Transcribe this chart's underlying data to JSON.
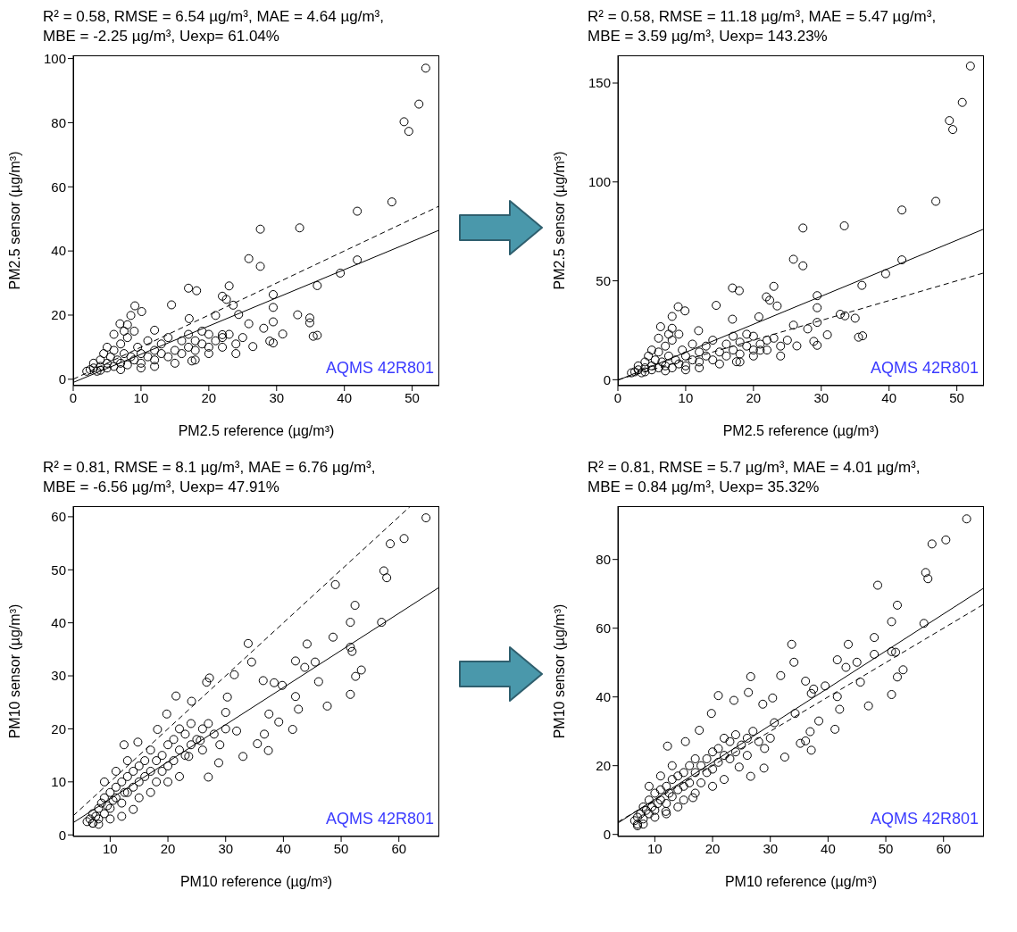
{
  "chart_data": [
    {
      "type": "scatter",
      "title": "R² = 0.58, RMSE = 6.54 µg/m³, MAE = 4.64 µg/m³,",
      "subtitle": "MBE = -2.25 µg/m³, Uexp= 61.04%",
      "xlabel": "PM2.5 reference (µg/m³)",
      "ylabel": "PM2.5 sensor (µg/m³)",
      "annotations": [
        "AQMS 42R801"
      ],
      "xlim": [
        0,
        54
      ],
      "ylim": [
        -2,
        101
      ],
      "xticks": [
        0,
        10,
        20,
        30,
        40,
        50
      ],
      "yticks": [
        0,
        20,
        40,
        60,
        80,
        100
      ],
      "series": [
        {
          "type": "scatter",
          "color": "#000000",
          "marker": "circle",
          "x": [
            52,
            51,
            48.8,
            49.5,
            47,
            41.9,
            33.4,
            27.6,
            25.9,
            27.6,
            41.9,
            39.4,
            36,
            29.5,
            29.5,
            23,
            17,
            18.2,
            22,
            22.6,
            23.6,
            24.4,
            14.5,
            9.1,
            10.1,
            33.1,
            34.9,
            34.9,
            29.5,
            28.1,
            30.9,
            35.4,
            36,
            29,
            29.5,
            26.5,
            25.9,
            21,
            17.1,
            12,
            6.9,
            8.5,
            22,
            17.5,
            2.5,
            3,
            3,
            4,
            4,
            4.5,
            5,
            5,
            5.5,
            6,
            6,
            6.5,
            7,
            7,
            7.5,
            8,
            8,
            8.5,
            9,
            9,
            9.5,
            10,
            10,
            11,
            11,
            12,
            12,
            13,
            13,
            14,
            14,
            15,
            16,
            16,
            17,
            17,
            18,
            18,
            19,
            19,
            20,
            20,
            21,
            22,
            22,
            23,
            24,
            25,
            6,
            5,
            3.5,
            2,
            4,
            7,
            10,
            12,
            8,
            7.5,
            15,
            18,
            20,
            24
          ],
          "values": [
            97,
            85.8,
            80.3,
            77.3,
            55.3,
            52.4,
            47.2,
            46.8,
            37.6,
            35.2,
            37.2,
            33.1,
            29.2,
            26.4,
            22.4,
            29.1,
            28.4,
            27.6,
            25.9,
            24.9,
            23.1,
            20.2,
            23.2,
            22.9,
            21.1,
            20.1,
            19.1,
            17.6,
            17.9,
            15.9,
            14.1,
            13.4,
            13.7,
            11.9,
            11.3,
            10.2,
            17.3,
            19.9,
            18.9,
            15.3,
            17.3,
            19.9,
            13.9,
            5.7,
            3,
            3.5,
            5,
            4,
            6,
            8,
            5,
            3.5,
            7,
            4,
            9,
            6,
            5,
            11,
            8,
            4.5,
            13,
            7,
            6,
            15,
            10,
            5,
            8,
            7,
            12,
            6,
            9,
            8,
            11,
            7,
            13,
            9,
            8,
            12,
            10,
            14,
            9,
            12,
            11,
            15,
            10,
            14,
            12,
            13,
            10,
            14,
            11,
            13,
            14,
            10,
            2.5,
            2.5,
            2.8,
            3,
            3.5,
            4,
            17,
            15,
            5,
            6,
            8,
            8
          ]
        },
        {
          "type": "line",
          "color": "#000000",
          "line_style": "solid",
          "marker": "none",
          "x": [
            0,
            54
          ],
          "values": [
            -1,
            46.5
          ]
        },
        {
          "type": "line",
          "color": "#000000",
          "line_style": "dashed",
          "marker": "none",
          "x": [
            0,
            54
          ],
          "values": [
            0,
            54
          ]
        }
      ]
    },
    {
      "type": "scatter",
      "title": "R² = 0.58, RMSE = 11.18 µg/m³, MAE = 5.47 µg/m³,",
      "subtitle": "MBE = 3.59 µg/m³, Uexp= 143.23%",
      "xlabel": "PM2.5 reference (µg/m³)",
      "ylabel": "PM2.5 sensor (µg/m³)",
      "annotations": [
        "AQMS 42R801"
      ],
      "xlim": [
        0,
        54
      ],
      "ylim": [
        -3,
        164
      ],
      "xticks": [
        0,
        10,
        20,
        30,
        40,
        50
      ],
      "yticks": [
        0,
        50,
        100,
        150
      ],
      "series": [
        {
          "type": "scatter",
          "color": "#000000",
          "marker": "circle",
          "x": [
            52,
            50.8,
            48.9,
            49.4,
            46.9,
            41.9,
            33.4,
            27.3,
            25.9,
            27.3,
            41.9,
            39.5,
            36,
            29.4,
            29.4,
            23,
            16.9,
            17.9,
            21.9,
            22.4,
            23.5,
            14.5,
            8.9,
            9.9,
            32.8,
            33.5,
            35,
            29.4,
            28,
            30.9,
            35.5,
            36.1,
            28.9,
            29.4,
            26.4,
            25.9,
            20.8,
            16.9,
            11.9,
            6.3,
            8,
            21,
            17.5,
            2.5,
            3,
            3,
            4,
            4,
            4.5,
            5,
            5,
            5.5,
            6,
            6,
            6.5,
            7,
            7,
            7.5,
            8,
            8,
            8.5,
            9,
            9,
            9.5,
            10,
            10,
            11,
            11,
            12,
            12,
            13,
            13,
            14,
            14,
            15,
            16,
            16,
            17,
            17,
            18,
            18,
            19,
            19,
            20,
            20,
            21,
            22,
            22,
            23,
            24,
            25,
            6,
            5,
            3.5,
            2,
            4,
            7,
            10,
            12,
            8,
            7.5,
            15,
            18,
            20,
            24
          ],
          "values": [
            158.6,
            140.2,
            131,
            126.5,
            90.2,
            85.8,
            77.8,
            76.7,
            60.9,
            57.6,
            60.6,
            53.6,
            47.7,
            42.5,
            36.4,
            47.2,
            46.4,
            45,
            41.9,
            40.2,
            37.3,
            37.6,
            36.9,
            34.8,
            33.1,
            32.3,
            31.1,
            29,
            25.7,
            22.7,
            21.5,
            22.2,
            19.4,
            17.4,
            17.1,
            27.6,
            31.8,
            30.6,
            24.8,
            26.8,
            32,
            14.9,
            9.1,
            4,
            5,
            7,
            6,
            9,
            12,
            7,
            5,
            10,
            6,
            14,
            9,
            7,
            17,
            12,
            6,
            20,
            10,
            8,
            23,
            15,
            7,
            12,
            10,
            18,
            9,
            14,
            12,
            17,
            10,
            20,
            14,
            12,
            18,
            15,
            22,
            13,
            19,
            17,
            23,
            15,
            22,
            18,
            20,
            15,
            21,
            17,
            20,
            21,
            15,
            3.5,
            3.5,
            4,
            4.5,
            5,
            6,
            26,
            23,
            8,
            9,
            12,
            12
          ]
        },
        {
          "type": "line",
          "color": "#000000",
          "line_style": "solid",
          "marker": "none",
          "x": [
            0,
            54
          ],
          "values": [
            -0.3,
            76.2
          ]
        },
        {
          "type": "line",
          "color": "#000000",
          "line_style": "dashed",
          "marker": "none",
          "x": [
            0,
            54
          ],
          "values": [
            0,
            54
          ]
        }
      ]
    },
    {
      "type": "scatter",
      "title": "R² = 0.81, RMSE = 8.1 µg/m³, MAE = 6.76 µg/m³,",
      "subtitle": "MBE = -6.56 µg/m³, Uexp= 47.91%",
      "xlabel": "PM10 reference (µg/m³)",
      "ylabel": "PM10 sensor (µg/m³)",
      "annotations": [
        "AQMS 42R801"
      ],
      "xlim": [
        3.6,
        67
      ],
      "ylim": [
        -0.3,
        62
      ],
      "xticks": [
        10,
        20,
        30,
        40,
        50,
        60
      ],
      "yticks": [
        0,
        10,
        20,
        30,
        40,
        50,
        60
      ],
      "series": [
        {
          "type": "scatter",
          "color": "#000000",
          "marker": "circle",
          "x": [
            64.7,
            60.9,
            58.5,
            57.4,
            57.9,
            49,
            52.4,
            51.6,
            57,
            48.6,
            51.6,
            51.9,
            44.1,
            33.9,
            34.5,
            42.1,
            43.7,
            45.5,
            31.5,
            27.2,
            26.7,
            21.4,
            24.1,
            30.3,
            36.5,
            38.4,
            39.8,
            46.1,
            53.5,
            52.5,
            51.6,
            47.6,
            42.1,
            42.6,
            41.6,
            37.5,
            39.2,
            35.5,
            37.4,
            36.7,
            33,
            31.9,
            27,
            28.8,
            19.8,
            18.2,
            12.4,
            14.8,
            23.6,
            25.6,
            30,
            6,
            6.5,
            7,
            7,
            7.5,
            8,
            8,
            8.5,
            9,
            9,
            9.5,
            10,
            10,
            10.5,
            11,
            11,
            12,
            12,
            12.5,
            13,
            13,
            14,
            14,
            15,
            15,
            16,
            16,
            17,
            17,
            18,
            18,
            19,
            19,
            20,
            20,
            21,
            21,
            22,
            22,
            23,
            23,
            24,
            24,
            25,
            26,
            26,
            27,
            28,
            29,
            30,
            13,
            11,
            9,
            15,
            17,
            20,
            22,
            12,
            10,
            14,
            8,
            7
          ],
          "values": [
            59.8,
            55.9,
            54.9,
            49.8,
            48.5,
            47.2,
            43.3,
            40.1,
            40.1,
            37.3,
            35.4,
            34.6,
            36,
            36.1,
            32.6,
            32.8,
            31.6,
            32.6,
            30.2,
            29.6,
            28.8,
            26.2,
            25.2,
            26,
            29.1,
            28.7,
            28.2,
            28.9,
            31.1,
            29.9,
            26.5,
            24.3,
            26.1,
            23.7,
            19.9,
            22.8,
            21.3,
            17.2,
            15.9,
            19,
            14.8,
            19.6,
            10.9,
            13.6,
            22.8,
            19.9,
            17,
            17.5,
            14.8,
            17.8,
            23.1,
            2.5,
            3,
            2.2,
            4,
            3.5,
            5,
            3,
            6,
            4,
            7,
            5.5,
            8,
            5,
            6.5,
            9,
            7,
            10,
            6,
            8,
            11,
            8,
            12,
            9,
            13,
            10,
            14,
            11,
            12,
            16,
            14,
            10,
            15,
            12,
            17,
            13,
            18,
            14,
            20,
            16,
            19,
            15,
            21,
            17,
            18,
            20,
            16,
            21,
            19,
            17,
            20,
            14,
            12,
            10,
            7,
            8,
            10,
            11,
            3.5,
            3,
            4.8,
            2,
            2.2
          ]
        },
        {
          "type": "line",
          "color": "#000000",
          "line_style": "solid",
          "marker": "none",
          "x": [
            3.6,
            67
          ],
          "values": [
            2.3,
            46.7
          ]
        },
        {
          "type": "line",
          "color": "#000000",
          "line_style": "dashed",
          "marker": "none",
          "x": [
            3.6,
            62
          ],
          "values": [
            3.6,
            62
          ]
        }
      ]
    },
    {
      "type": "scatter",
      "title": "R² = 0.81, RMSE = 5.7 µg/m³, MAE = 4.01 µg/m³,",
      "subtitle": "MBE = 0.84 µg/m³, Uexp= 35.32%",
      "xlabel": "PM10 reference (µg/m³)",
      "ylabel": "PM10 sensor (µg/m³)",
      "annotations": [
        "AQMS 42R801"
      ],
      "xlim": [
        3.6,
        67
      ],
      "ylim": [
        -0.6,
        95.5
      ],
      "xticks": [
        10,
        20,
        30,
        40,
        50,
        60
      ],
      "yticks": [
        0,
        20,
        40,
        60,
        80
      ],
      "series": [
        {
          "type": "scatter",
          "color": "#000000",
          "marker": "circle",
          "x": [
            64,
            60.4,
            58,
            56.9,
            57.3,
            48.6,
            52,
            51,
            56.6,
            48,
            43.5,
            33.7,
            34.1,
            51,
            51.7,
            48,
            45,
            41.6,
            43.1,
            53,
            52,
            51,
            47,
            45.6,
            31.8,
            26.6,
            26.2,
            21,
            23.7,
            28.7,
            30.4,
            19.8,
            36.1,
            37.5,
            37.1,
            39.5,
            41.6,
            42,
            41.2,
            38.4,
            36.9,
            36.1,
            37.1,
            35.2,
            34.3,
            30.7,
            32.5,
            28.9,
            26.6,
            24.6,
            17.7,
            15.3,
            12.2,
            16.6,
            11.9,
            6.5,
            7,
            7,
            7.5,
            8,
            8,
            8.5,
            9,
            9,
            9.5,
            10,
            10,
            10.5,
            11,
            11,
            12,
            12,
            12.5,
            13,
            13,
            14,
            14,
            15,
            15,
            16,
            16,
            17,
            17,
            18,
            18,
            19,
            19,
            20,
            20,
            21,
            21,
            22,
            22,
            23,
            23,
            24,
            24,
            25,
            26,
            26,
            27,
            28,
            29,
            30,
            13,
            11,
            9,
            15,
            17,
            20,
            22,
            12,
            10,
            14,
            8,
            7
          ],
          "values": [
            91.8,
            85.7,
            84.5,
            76.2,
            74.4,
            72.5,
            66.7,
            61.9,
            61.4,
            57.3,
            55.3,
            55.3,
            50.1,
            53.2,
            53,
            52.4,
            50.1,
            50.8,
            48.6,
            47.9,
            45.8,
            40.7,
            37.4,
            44.3,
            46.2,
            45.9,
            41.3,
            40.4,
            39,
            37.9,
            39.7,
            35.2,
            44.6,
            42.3,
            41,
            43.2,
            40.1,
            36.4,
            30.6,
            33,
            29.9,
            27.2,
            24.5,
            26.5,
            35.2,
            32.5,
            22.5,
            19.3,
            16.9,
            19.6,
            30.3,
            27,
            25.7,
            10.7,
            6.7,
            4,
            5,
            3,
            6,
            4.5,
            8,
            7,
            6,
            10,
            8,
            12,
            7,
            9,
            13,
            10,
            14,
            9,
            12,
            16,
            11,
            17,
            13,
            18,
            14,
            20,
            15,
            18,
            22,
            20,
            15,
            22,
            18,
            24,
            19,
            25,
            21,
            28,
            23,
            27,
            22,
            29,
            24,
            26,
            28,
            23,
            30,
            27,
            25,
            28,
            20,
            17,
            14,
            10,
            12,
            14,
            16,
            6,
            5,
            8,
            3,
            2.5
          ]
        },
        {
          "type": "line",
          "color": "#000000",
          "line_style": "solid",
          "marker": "none",
          "x": [
            3.6,
            67
          ],
          "values": [
            3.3,
            71.7
          ]
        },
        {
          "type": "line",
          "color": "#000000",
          "line_style": "dashed",
          "marker": "none",
          "x": [
            3.6,
            67
          ],
          "values": [
            3.6,
            67
          ]
        }
      ]
    }
  ]
}
